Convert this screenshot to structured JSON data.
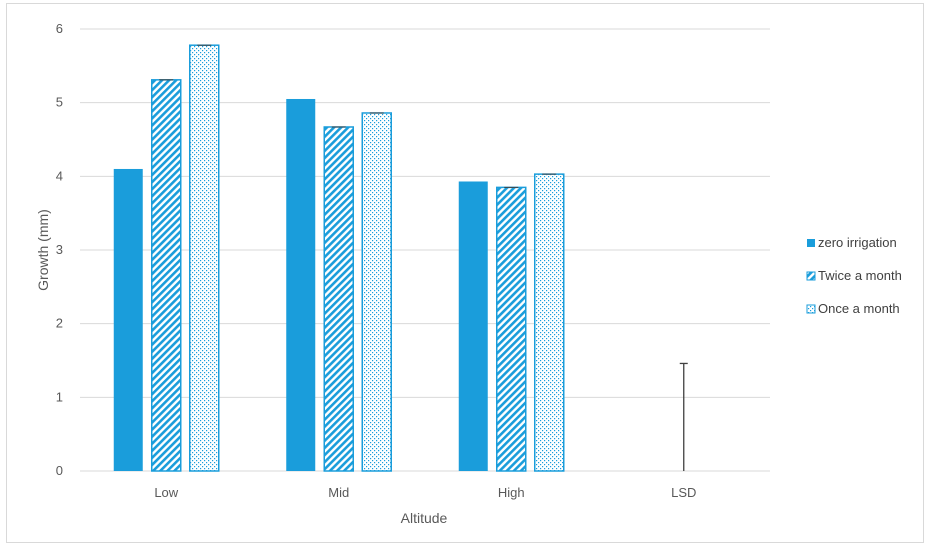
{
  "chart_data": {
    "type": "bar",
    "categories": [
      "Low",
      "Mid",
      "High",
      "LSD"
    ],
    "series": [
      {
        "name": "zero irrigation",
        "values": [
          4.1,
          5.05,
          3.93,
          null
        ],
        "color": "#1a9ddb",
        "pattern": "solid"
      },
      {
        "name": "Twice a month",
        "values": [
          5.31,
          4.67,
          3.85,
          null
        ],
        "color": "#1a9ddb",
        "pattern": "diagonal-stripes"
      },
      {
        "name": "Once a month",
        "values": [
          5.78,
          4.86,
          4.03,
          null
        ],
        "color": "#1a9ddb",
        "pattern": "dots"
      }
    ],
    "error_bar": {
      "category": "LSD",
      "value": 1.46
    },
    "xlabel": "Altitude",
    "ylabel": "Growth (mm)",
    "ylim": [
      0,
      6
    ],
    "yticks": [
      0,
      1,
      2,
      3,
      4,
      5,
      6
    ],
    "grid": true,
    "legend_position": "right"
  }
}
